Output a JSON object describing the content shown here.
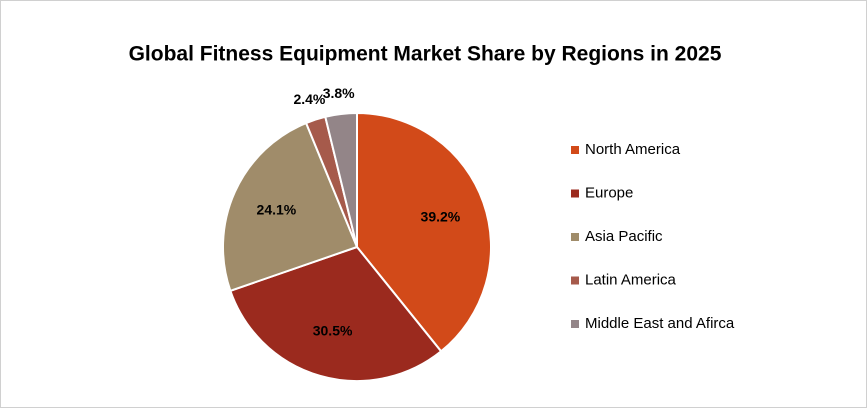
{
  "chart_data": {
    "type": "pie",
    "title": "Global Fitness Equipment Market Share by Regions in 2025",
    "categories": [
      "North America",
      "Europe",
      "Asia Pacific",
      "Latin America",
      "Middle East and Afirca"
    ],
    "values": [
      39.2,
      30.5,
      24.1,
      2.4,
      3.8
    ],
    "value_labels": [
      "39.2%",
      "30.5%",
      "24.1%",
      "2.4%",
      "3.8%"
    ],
    "colors": [
      "#d24a19",
      "#9b2a1e",
      "#a08c6a",
      "#a65a4b",
      "#938588"
    ],
    "legend": "right"
  }
}
